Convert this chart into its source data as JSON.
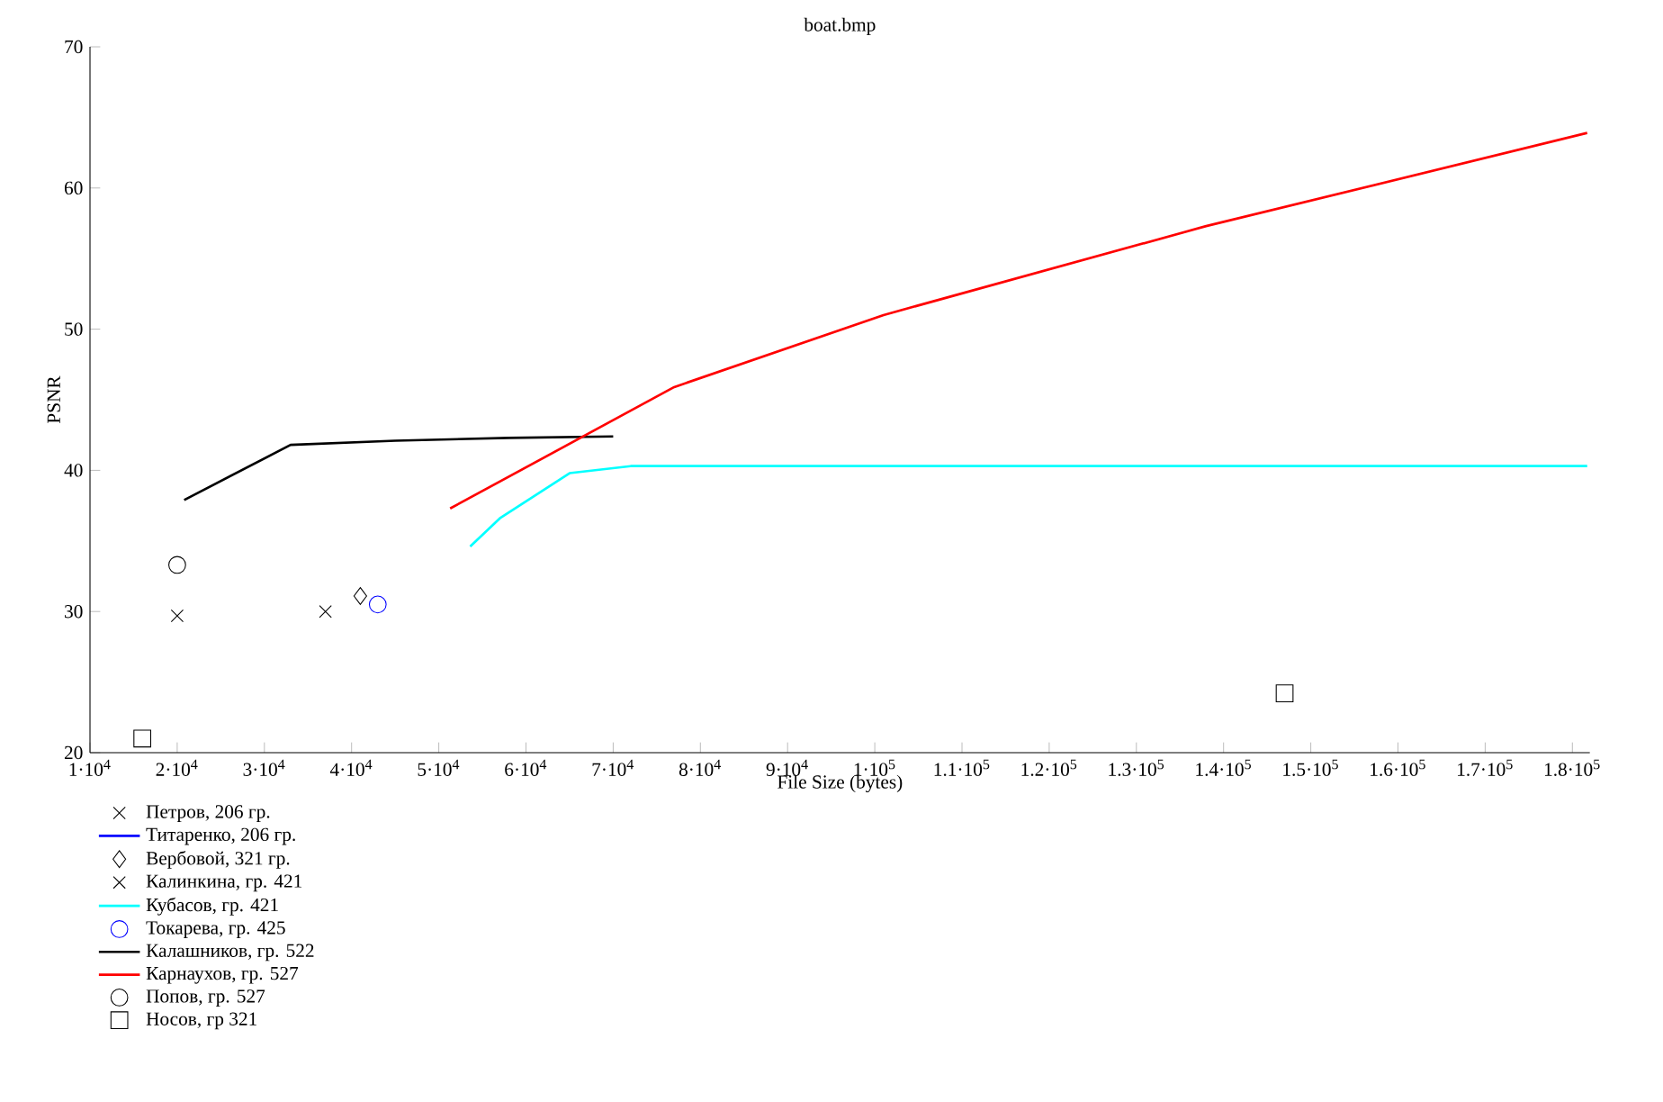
{
  "chart_data": {
    "type": "line",
    "title": "boat.bmp",
    "xlabel": "File Size (bytes)",
    "ylabel": "PSNR",
    "xlim": [
      10000,
      182000
    ],
    "ylim": [
      20,
      70
    ],
    "xticks": [
      {
        "value": 10000,
        "label": "1·10$^{4}$"
      },
      {
        "value": 20000,
        "label": "2·10$^{4}$"
      },
      {
        "value": 30000,
        "label": "3·10$^{4}$"
      },
      {
        "value": 40000,
        "label": "4·10$^{4}$"
      },
      {
        "value": 50000,
        "label": "5·10$^{4}$"
      },
      {
        "value": 60000,
        "label": "6·10$^{4}$"
      },
      {
        "value": 70000,
        "label": "7·10$^{4}$"
      },
      {
        "value": 80000,
        "label": "8·10$^{4}$"
      },
      {
        "value": 90000,
        "label": "9·10$^{4}$"
      },
      {
        "value": 100000,
        "label": "1·10$^{5}$"
      },
      {
        "value": 110000,
        "label": "1.1·10$^{5}$"
      },
      {
        "value": 120000,
        "label": "1.2·10$^{5}$"
      },
      {
        "value": 130000,
        "label": "1.3·10$^{5}$"
      },
      {
        "value": 140000,
        "label": "1.4·10$^{5}$"
      },
      {
        "value": 150000,
        "label": "1.5·10$^{5}$"
      },
      {
        "value": 160000,
        "label": "1.6·10$^{5}$"
      },
      {
        "value": 170000,
        "label": "1.7·10$^{5}$"
      },
      {
        "value": 180000,
        "label": "1.8·10$^{5}$"
      }
    ],
    "yticks": [
      20,
      30,
      40,
      50,
      60,
      70
    ],
    "legend": "bottom left",
    "series": [
      {
        "name": "Петров, 206 гр.",
        "type": "scatter",
        "marker": "cross",
        "color": "#000000",
        "x": [
          20000
        ],
        "values": [
          29.7
        ]
      },
      {
        "name": "Титаренко, 206 гр.",
        "color": "#0000ff"
      },
      {
        "name": "Вербовой, 321 гр.",
        "type": "scatter",
        "marker": "diamond",
        "color": "#000000",
        "x": [
          41000
        ],
        "values": [
          31.1
        ]
      },
      {
        "name": "Калинкина, гр. 421",
        "type": "scatter",
        "marker": "cross",
        "color": "#000000",
        "x": [
          37000
        ],
        "values": [
          30.0
        ]
      },
      {
        "name": "Кубасов, гр. 421",
        "color": "#00ffff",
        "x": [
          53600,
          57000,
          65000,
          72000,
          181700
        ],
        "values": [
          34.6,
          36.6,
          39.8,
          40.3,
          40.3
        ]
      },
      {
        "name": "Токарева, гр. 425",
        "type": "scatter",
        "marker": "circle",
        "color": "#0000ff",
        "x": [
          43000
        ],
        "values": [
          30.5
        ]
      },
      {
        "name": "Калашников, гр. 522",
        "color": "#000000",
        "x": [
          20800,
          33000,
          45000,
          58000,
          70000
        ],
        "values": [
          37.9,
          41.8,
          42.1,
          42.3,
          42.4
        ]
      },
      {
        "name": "Карнаухов, гр. 527",
        "color": "#ff0000",
        "x": [
          51300,
          77000,
          101000,
          138000,
          181700
        ],
        "values": [
          37.3,
          45.9,
          51.0,
          57.3,
          63.9
        ]
      },
      {
        "name": "Попов, гр. 527",
        "type": "scatter",
        "marker": "circle",
        "color": "#000000",
        "x": [
          20000
        ],
        "values": [
          33.3
        ]
      },
      {
        "name": "Носов, гр 321",
        "type": "scatter",
        "marker": "square",
        "color": "#000000",
        "x": [
          16000,
          147000
        ],
        "values": [
          21.0,
          24.2
        ]
      }
    ]
  }
}
